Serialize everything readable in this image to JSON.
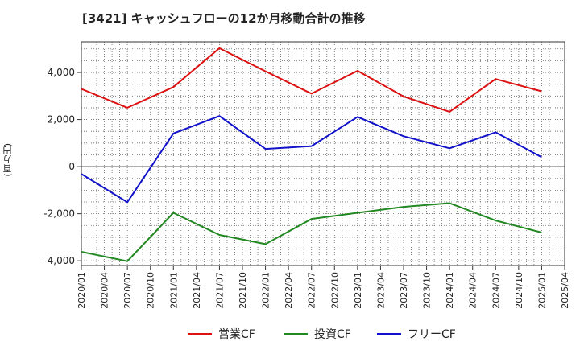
{
  "chart_data": {
    "type": "line",
    "title": "[3421]  キャッシュフローの12か月移動合計の推移",
    "ylabel": "(百万円)",
    "xlabel": "",
    "ylim": [
      -4200,
      5300
    ],
    "yticks": [
      4000,
      2000,
      0,
      -2000,
      -4000
    ],
    "ytick_labels": [
      "4,000",
      "2,000",
      "0",
      "-2,000",
      "-4,000"
    ],
    "categories": [
      "2020/01",
      "2020/04",
      "2020/07",
      "2020/10",
      "2021/01",
      "2021/04",
      "2021/07",
      "2021/10",
      "2022/01",
      "2022/04",
      "2022/07",
      "2022/10",
      "2023/01",
      "2023/04",
      "2023/07",
      "2023/10",
      "2024/01",
      "2024/04",
      "2024/07",
      "2024/10",
      "2025/01",
      "2025/04"
    ],
    "series": [
      {
        "name": "営業CF",
        "color": "#dd1111",
        "values": [
          3300,
          null,
          2500,
          null,
          3380,
          null,
          5030,
          null,
          4050,
          null,
          3100,
          null,
          4070,
          null,
          2980,
          null,
          2330,
          null,
          3720,
          null,
          3200,
          null
        ]
      },
      {
        "name": "投資CF",
        "color": "#228822",
        "values": [
          -3620,
          null,
          -4020,
          null,
          -1960,
          null,
          -2900,
          null,
          -3290,
          null,
          -2220,
          null,
          -1960,
          null,
          -1710,
          null,
          -1550,
          null,
          -2290,
          null,
          -2800,
          null
        ]
      },
      {
        "name": "フリーCF",
        "color": "#1111cc",
        "values": [
          -310,
          null,
          -1510,
          null,
          1410,
          null,
          2150,
          null,
          750,
          null,
          870,
          null,
          2110,
          null,
          1290,
          null,
          780,
          null,
          1460,
          null,
          400,
          null
        ]
      }
    ],
    "grid": true,
    "legend": "bottom"
  }
}
